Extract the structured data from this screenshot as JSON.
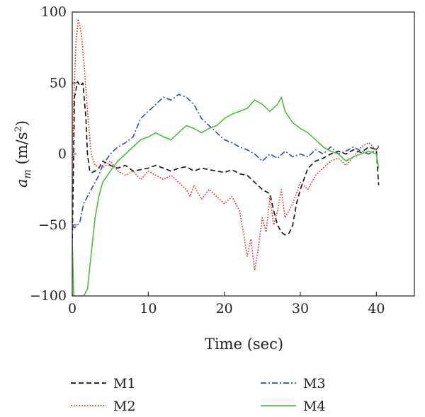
{
  "chart_data": {
    "type": "line",
    "title": "",
    "xlabel": "Time (sec)",
    "ylabel_main": "a",
    "ylabel_sub": "m",
    "ylabel_unit_open": " (m/s",
    "ylabel_unit_sup": "2",
    "ylabel_unit_close": ")",
    "xlim": [
      0,
      45
    ],
    "ylim": [
      -100,
      100
    ],
    "x_ticks": [
      0,
      10,
      20,
      30,
      40
    ],
    "x_tick_labels": [
      "0",
      "10",
      "20",
      "30",
      "40"
    ],
    "y_ticks": [
      -100,
      -50,
      0,
      50,
      100
    ],
    "y_tick_labels": [
      "−100",
      "−50",
      "0",
      "50",
      "100"
    ],
    "grid": false,
    "legend_position": "bottom",
    "series": [
      {
        "name": "M1",
        "color": "#111111",
        "dash": "dashed",
        "x": [
          0,
          0.3,
          0.7,
          1.0,
          1.4,
          1.8,
          2.0,
          2.3,
          2.6,
          3.0,
          3.5,
          4.0,
          5.0,
          6.0,
          7.0,
          8.0,
          9.0,
          10.0,
          11.0,
          12.0,
          13.0,
          14.0,
          15.0,
          16.0,
          17.0,
          18.0,
          19.0,
          20.0,
          21.0,
          22.0,
          23.0,
          24.0,
          25.0,
          26.0,
          26.5,
          27.0,
          27.5,
          28.0,
          28.5,
          29.0,
          29.5,
          30.0,
          31.0,
          32.0,
          33.0,
          34.0,
          35.0,
          36.0,
          37.0,
          38.0,
          39.0,
          40.0,
          40.3
        ],
        "y": [
          -65,
          40,
          51,
          48,
          50,
          25,
          0,
          -12,
          -13,
          -12,
          -10,
          -5,
          -8,
          -10,
          -8,
          -12,
          -11,
          -10,
          -8,
          -10,
          -12,
          -10,
          -9,
          -12,
          -10,
          -11,
          -12,
          -13,
          -11,
          -14,
          -15,
          -20,
          -25,
          -28,
          -40,
          -50,
          -55,
          -57,
          -56,
          -50,
          -35,
          -25,
          -10,
          -5,
          -3,
          0,
          2,
          0,
          3,
          1,
          5,
          3,
          -22
        ]
      },
      {
        "name": "M2",
        "color": "#e02a2a",
        "dash": "dotted",
        "x": [
          0,
          0.2,
          0.5,
          0.8,
          1.2,
          1.6,
          2.0,
          2.5,
          3.0,
          4.0,
          5.0,
          6.0,
          7.0,
          8.0,
          9.0,
          10.0,
          11.0,
          12.0,
          13.0,
          14.0,
          15.0,
          15.5,
          16.0,
          17.0,
          18.0,
          19.0,
          20.0,
          21.0,
          22.0,
          22.5,
          23.0,
          23.5,
          24.0,
          24.5,
          25.0,
          25.5,
          26.0,
          26.5,
          27.0,
          27.5,
          28.0,
          29.0,
          30.0,
          31.0,
          32.0,
          33.0,
          34.0,
          35.0,
          36.0,
          37.0,
          38.0,
          39.0,
          40.0,
          40.3
        ],
        "y": [
          -20,
          40,
          80,
          95,
          85,
          60,
          30,
          0,
          -8,
          -10,
          -5,
          -12,
          -15,
          -12,
          -18,
          -12,
          -15,
          -18,
          -15,
          -20,
          -25,
          -30,
          -22,
          -32,
          -25,
          -30,
          -35,
          -30,
          -40,
          -55,
          -72,
          -60,
          -82,
          -65,
          -45,
          -55,
          -30,
          -50,
          -40,
          -25,
          -45,
          -35,
          -20,
          -25,
          -15,
          -10,
          -5,
          -3,
          -8,
          -2,
          5,
          8,
          3,
          6
        ]
      },
      {
        "name": "M3",
        "color": "#2b4fa8",
        "dash": "dashdot",
        "x": [
          0,
          0.3,
          0.7,
          1.0,
          1.5,
          2.0,
          2.5,
          3.0,
          3.5,
          4.0,
          5.0,
          6.0,
          7.0,
          8.0,
          9.0,
          10.0,
          11.0,
          12.0,
          13.0,
          14.0,
          15.0,
          16.0,
          17.0,
          18.0,
          19.0,
          20.0,
          21.0,
          22.0,
          23.0,
          24.0,
          25.0,
          26.0,
          27.0,
          28.0,
          29.0,
          30.0,
          31.0,
          32.0,
          33.0,
          34.0,
          35.0,
          36.0,
          37.0,
          38.0,
          39.0,
          40.0,
          40.3
        ],
        "y": [
          -50,
          -52,
          -50,
          -48,
          -35,
          -30,
          -25,
          -20,
          -15,
          -8,
          0,
          5,
          8,
          12,
          25,
          30,
          35,
          40,
          38,
          42,
          40,
          35,
          25,
          20,
          15,
          10,
          8,
          5,
          3,
          0,
          -5,
          0,
          -3,
          2,
          -2,
          0,
          -2,
          3,
          0,
          5,
          0,
          2,
          5,
          2,
          0,
          3,
          5
        ]
      },
      {
        "name": "M4",
        "color": "#4cbf3a",
        "dash": "solid",
        "x": [
          0,
          0.2,
          1.0,
          1.5,
          2.0,
          2.5,
          3.0,
          3.5,
          4.0,
          5.0,
          6.0,
          7.0,
          8.0,
          9.0,
          10.0,
          11.0,
          12.0,
          13.0,
          14.0,
          15.0,
          16.0,
          17.0,
          18.0,
          19.0,
          20.0,
          21.0,
          22.0,
          23.0,
          24.0,
          25.0,
          26.0,
          27.0,
          27.5,
          28.0,
          29.0,
          30.0,
          31.0,
          32.0,
          33.0,
          34.0,
          35.0,
          36.0,
          37.0,
          38.0,
          39.0,
          40.0,
          40.3
        ],
        "y": [
          -60,
          -100,
          -100,
          -100,
          -95,
          -70,
          -45,
          -30,
          -20,
          -12,
          -5,
          0,
          5,
          10,
          12,
          15,
          12,
          10,
          15,
          20,
          18,
          15,
          18,
          20,
          25,
          28,
          30,
          32,
          38,
          35,
          30,
          35,
          40,
          30,
          22,
          18,
          15,
          10,
          5,
          2,
          0,
          -5,
          -2,
          0,
          2,
          0,
          -10
        ]
      }
    ]
  }
}
